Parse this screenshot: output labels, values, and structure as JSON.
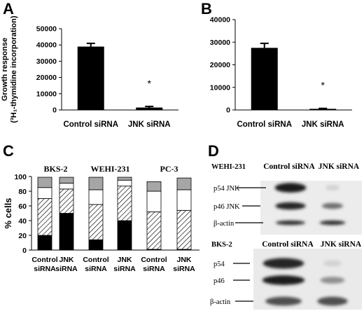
{
  "chart_data": [
    {
      "panel": "A",
      "type": "bar",
      "categories": [
        "Control siRNA",
        "JNK siRNA"
      ],
      "values": [
        39000,
        1500
      ],
      "errors": [
        2000,
        700
      ],
      "annotations": [
        "",
        "*"
      ],
      "ylabel_line1": "Growth response",
      "ylabel_line2": "(³H₁-thymidine incorporation)",
      "ylim": [
        0,
        50000
      ],
      "yticks": [
        "0",
        "10000",
        "20000",
        "30000",
        "40000",
        "50000"
      ],
      "bar_color": "#000000"
    },
    {
      "panel": "B",
      "type": "bar",
      "categories": [
        "Control siRNA",
        "JNK siRNA"
      ],
      "values": [
        27500,
        500
      ],
      "errors": [
        2000,
        200
      ],
      "annotations": [
        "",
        "*"
      ],
      "ylim": [
        0,
        40000
      ],
      "yticks": [
        "0",
        "10000",
        "20000",
        "30000",
        "40000"
      ],
      "bar_color": "#000000"
    },
    {
      "panel": "C",
      "type": "bar",
      "stacked": true,
      "groups": [
        "BKS-2",
        "WEHI-231",
        "PC-3"
      ],
      "categories": [
        "Control siRNA",
        "JNK siRNA",
        "Control siRNA",
        "JNK siRNA",
        "Control siRNA",
        "JNK siRNA"
      ],
      "category_lines": [
        [
          "Control",
          "siRNA"
        ],
        [
          "JNK",
          "siRNA"
        ],
        [
          "Control",
          "siRNA"
        ],
        [
          "JNK",
          "siRNA"
        ],
        [
          "Control",
          "siRNA"
        ],
        [
          "JNK",
          "siRNA"
        ]
      ],
      "series": [
        {
          "fill": "#000000",
          "values": [
            20,
            50,
            14,
            40,
            1,
            1
          ]
        },
        {
          "fill": "hatch",
          "values": [
            50,
            33,
            48,
            47,
            51,
            53
          ]
        },
        {
          "fill": "#ffffff",
          "values": [
            15,
            8,
            20,
            8,
            28,
            28
          ]
        },
        {
          "fill": "#a6a6a6",
          "values": [
            14,
            8,
            17,
            4,
            13,
            16
          ]
        }
      ],
      "ylabel": "% cells",
      "ylim": [
        0,
        100
      ],
      "yticks": [
        "0",
        "20",
        "40",
        "60",
        "80",
        "100"
      ]
    },
    {
      "panel": "D",
      "type": "table",
      "blots": [
        {
          "cell_line": "WEHI-231",
          "columns": [
            "Control siRNA",
            "JNK siRNA"
          ],
          "rows": [
            "p54 JNK",
            "p46 JNK",
            "β-actin"
          ],
          "intensity": [
            [
              0.95,
              0.1
            ],
            [
              0.9,
              0.55
            ],
            [
              0.85,
              0.85
            ]
          ]
        },
        {
          "cell_line": "BKS-2",
          "columns": [
            "Control siRNA",
            "JNK siRNA"
          ],
          "rows": [
            "p54",
            "p46",
            "β-actin"
          ],
          "intensity": [
            [
              0.9,
              0.1
            ],
            [
              0.95,
              0.4
            ],
            [
              0.7,
              0.7
            ]
          ]
        }
      ]
    }
  ]
}
